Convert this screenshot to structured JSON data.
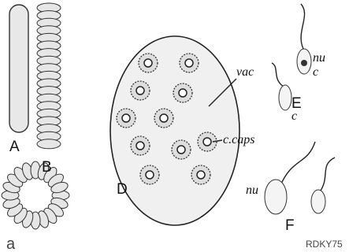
{
  "figure": {
    "labels": {
      "A": "A",
      "B": "B",
      "D": "D",
      "E": "E",
      "F": "F"
    },
    "annotations": {
      "vac": "vac",
      "c_caps": "c.caps",
      "nu_E": "nu",
      "c_E_upper": "c",
      "c_E_lower": "c",
      "nu_F": "nu"
    },
    "watermark": {
      "logo": "a",
      "code": "RDKY75"
    }
  }
}
